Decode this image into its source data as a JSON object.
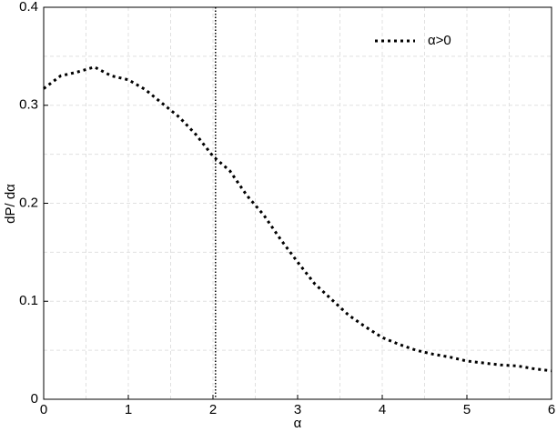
{
  "chart_data": {
    "type": "line",
    "xlabel": "α",
    "ylabel": "dP/ dα",
    "x": [
      0,
      0.2,
      0.4,
      0.6,
      0.8,
      1.0,
      1.2,
      1.4,
      1.6,
      1.8,
      2.0,
      2.2,
      2.4,
      2.6,
      2.8,
      3.0,
      3.2,
      3.4,
      3.6,
      3.8,
      4.0,
      4.2,
      4.4,
      4.6,
      4.8,
      5.0,
      5.2,
      5.4,
      5.6,
      5.8,
      6.0
    ],
    "series": [
      {
        "name": "α>0",
        "color": "#000000",
        "values": [
          0.317,
          0.33,
          0.334,
          0.339,
          0.33,
          0.326,
          0.316,
          0.302,
          0.288,
          0.27,
          0.248,
          0.233,
          0.208,
          0.188,
          0.163,
          0.14,
          0.118,
          0.102,
          0.086,
          0.074,
          0.063,
          0.056,
          0.05,
          0.046,
          0.043,
          0.039,
          0.037,
          0.035,
          0.034,
          0.031,
          0.029
        ]
      }
    ],
    "vline": 2.03,
    "xlim": [
      0,
      6
    ],
    "ylim": [
      0,
      0.4
    ],
    "xticks": [
      0,
      1,
      2,
      3,
      4,
      5,
      6
    ],
    "yticks": [
      0,
      0.1,
      0.2,
      0.3,
      0.4
    ],
    "x_minor_grid": [
      0.5,
      1.5,
      2.5,
      3.5,
      4.5,
      5.5
    ],
    "y_minor_grid": [
      0.05,
      0.15,
      0.25,
      0.35
    ],
    "grid": true,
    "legend": "upper right"
  }
}
